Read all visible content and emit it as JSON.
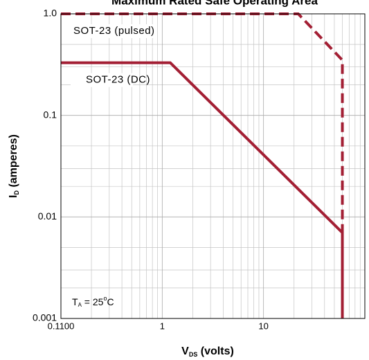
{
  "chart_data": {
    "type": "line",
    "title": "Maximum Rated Safe Operating Area",
    "xlabel": {
      "main": "V",
      "sub": "DS",
      "rest": " (volts)"
    },
    "ylabel": {
      "main": "I",
      "sub": "D",
      "rest": " (amperes)"
    },
    "annotation": {
      "main": "T",
      "sub": "A",
      "rest": " = 25",
      "sup": "o",
      "end": "C"
    },
    "xscale": "log",
    "yscale": "log",
    "grid": true,
    "xlim": [
      0.1,
      100
    ],
    "ylim": [
      0.001,
      1
    ],
    "xticks": [
      {
        "value": 0.1,
        "label": "0.1100"
      },
      1,
      10
    ],
    "yticks": [
      0.001,
      0.01,
      0.1,
      {
        "value": 1,
        "label": "1.0"
      }
    ],
    "series": [
      {
        "name": "SOT-23 (pulsed)",
        "color": "#a31f34",
        "dashed": true,
        "x": [
          0.1,
          22,
          60,
          60
        ],
        "values": [
          1,
          1,
          0.35,
          0.007
        ]
      },
      {
        "name": "SOT-23 (DC)",
        "color": "#a31f34",
        "dashed": false,
        "x": [
          0.1,
          1.2,
          60,
          60
        ],
        "values": [
          0.33,
          0.33,
          0.007,
          0.001
        ]
      }
    ]
  }
}
